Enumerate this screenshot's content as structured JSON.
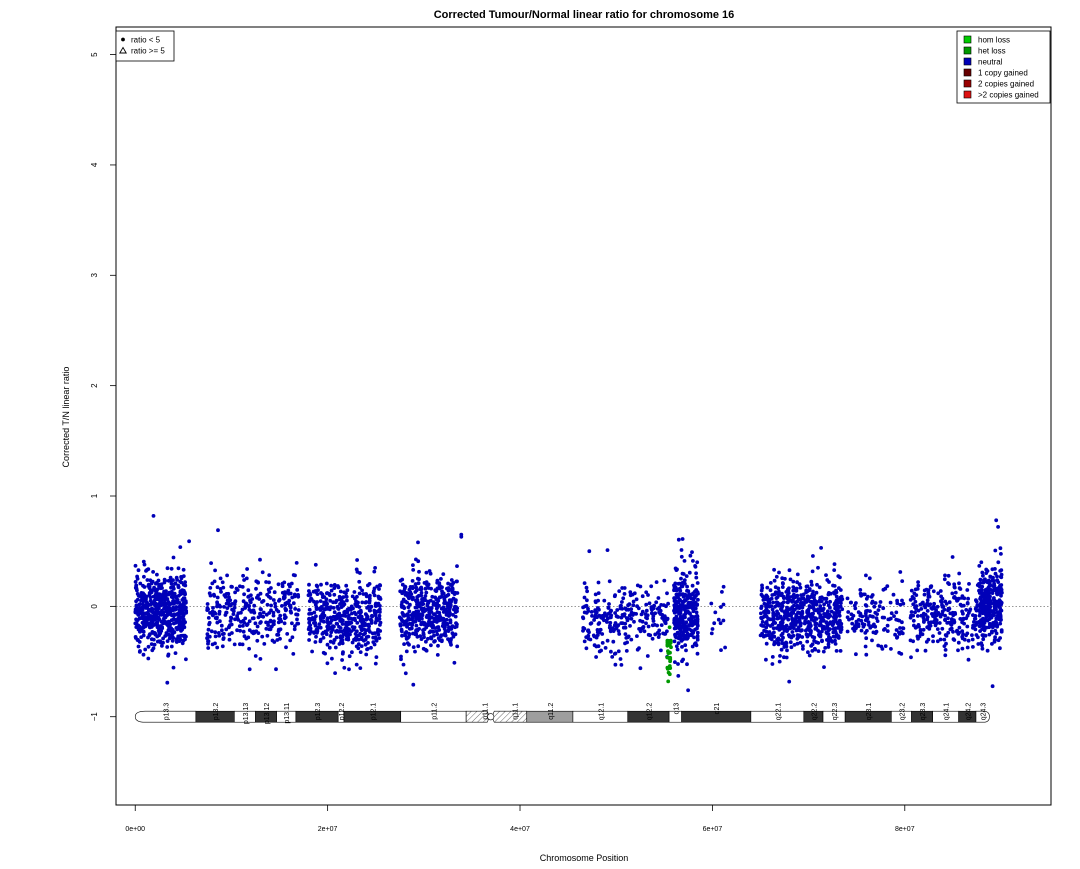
{
  "chart_data": {
    "type": "scatter",
    "title": "Corrected Tumour/Normal linear ratio for chromosome  16",
    "xlabel": "Chromosome Position",
    "ylabel": "Corrected T/N linear ratio",
    "xlim": [
      -2000000,
      95200000
    ],
    "ylim": [
      -1.8,
      5.25
    ],
    "x_ticks": [
      0,
      20000000,
      40000000,
      60000000,
      80000000
    ],
    "x_tick_labels": [
      "0e+00",
      "2e+07",
      "4e+07",
      "6e+07",
      "8e+07"
    ],
    "y_ticks": [
      -1,
      0,
      1,
      2,
      3,
      4,
      5
    ],
    "y_tick_labels": [
      "−1",
      "0",
      "1",
      "2",
      "3",
      "4",
      "5"
    ],
    "reference_line_y": 0,
    "grid": false,
    "shape_legend": {
      "placement": "top-left",
      "entries": [
        {
          "symbol": "dot",
          "label": "ratio < 5"
        },
        {
          "symbol": "triangle",
          "label": "ratio >= 5"
        }
      ]
    },
    "status_legend": {
      "placement": "top-right",
      "entries": [
        {
          "label": "hom loss",
          "color": "#00cc00"
        },
        {
          "label": "het loss",
          "color": "#009900"
        },
        {
          "label": "neutral",
          "color": "#0000b8"
        },
        {
          "label": "1 copy gained",
          "color": "#660000"
        },
        {
          "label": "2 copies gained",
          "color": "#990000"
        },
        {
          "label": ">2 copies gained",
          "color": "#dd1111"
        }
      ]
    },
    "segments": [
      {
        "status": "neutral",
        "color": "#0000b8",
        "x_start": 0,
        "x_end": 5300000,
        "mean": -0.05,
        "spread": 0.17,
        "n": 560,
        "seed": 11
      },
      {
        "status": "neutral",
        "color": "#0000b8",
        "x_start": 7400000,
        "x_end": 17000000,
        "mean": -0.07,
        "spread": 0.17,
        "n": 320,
        "seed": 23
      },
      {
        "status": "neutral",
        "color": "#0000b8",
        "x_start": 18000000,
        "x_end": 25500000,
        "mean": -0.1,
        "spread": 0.17,
        "n": 440,
        "seed": 37
      },
      {
        "status": "neutral",
        "color": "#0000b8",
        "x_start": 27500000,
        "x_end": 33500000,
        "mean": -0.05,
        "spread": 0.18,
        "n": 440,
        "seed": 41
      },
      {
        "status": "neutral",
        "color": "#0000b8",
        "x_start": 46500000,
        "x_end": 55600000,
        "mean": -0.13,
        "spread": 0.15,
        "n": 260,
        "seed": 53
      },
      {
        "status": "neutral",
        "color": "#0000b8",
        "x_start": 56000000,
        "x_end": 58500000,
        "mean": -0.05,
        "spread": 0.2,
        "n": 300,
        "seed": 67
      },
      {
        "status": "neutral",
        "color": "#0000b8",
        "x_start": 59800000,
        "x_end": 61800000,
        "mean": -0.1,
        "spread": 0.18,
        "n": 14,
        "seed": 71
      },
      {
        "status": "neutral",
        "color": "#0000b8",
        "x_start": 65000000,
        "x_end": 73500000,
        "mean": -0.08,
        "spread": 0.17,
        "n": 620,
        "seed": 83
      },
      {
        "status": "neutral",
        "color": "#0000b8",
        "x_start": 74000000,
        "x_end": 80000000,
        "mean": -0.13,
        "spread": 0.15,
        "n": 130,
        "seed": 97
      },
      {
        "status": "neutral",
        "color": "#0000b8",
        "x_start": 80500000,
        "x_end": 87700000,
        "mean": -0.07,
        "spread": 0.16,
        "n": 260,
        "seed": 101
      },
      {
        "status": "neutral",
        "color": "#0000b8",
        "x_start": 87700000,
        "x_end": 90100000,
        "mean": 0.0,
        "spread": 0.18,
        "n": 300,
        "seed": 113
      },
      {
        "status": "het loss",
        "color": "#009900",
        "x_start": 55300000,
        "x_end": 55700000,
        "mean": -0.42,
        "spread": 0.09,
        "n": 28,
        "seed": 131
      }
    ],
    "highlighted_points": [
      {
        "x": 1900000,
        "y": 0.82,
        "color": "#0000b8"
      },
      {
        "x": 8600000,
        "y": 0.69,
        "color": "#0000b8"
      },
      {
        "x": 5600000,
        "y": 0.59,
        "color": "#0000b8"
      },
      {
        "x": 29400000,
        "y": 0.58,
        "color": "#0000b8"
      },
      {
        "x": 33900000,
        "y": 0.65,
        "color": "#0000b8"
      },
      {
        "x": 33900000,
        "y": 0.63,
        "color": "#0000b8"
      },
      {
        "x": 56900000,
        "y": 0.61,
        "color": "#0000b8"
      },
      {
        "x": 89500000,
        "y": 0.78,
        "color": "#0000b8"
      },
      {
        "x": 89700000,
        "y": 0.72,
        "color": "#0000b8"
      },
      {
        "x": 71300000,
        "y": 0.53,
        "color": "#0000b8"
      },
      {
        "x": 49100000,
        "y": 0.51,
        "color": "#0000b8"
      },
      {
        "x": 47200000,
        "y": 0.5,
        "color": "#0000b8"
      },
      {
        "x": 55400000,
        "y": -0.68,
        "color": "#009900"
      },
      {
        "x": 55450000,
        "y": -0.6,
        "color": "#009900"
      },
      {
        "x": 11900000,
        "y": -0.57,
        "color": "#0000b8"
      },
      {
        "x": 71600000,
        "y": -0.55,
        "color": "#0000b8"
      }
    ],
    "ideogram": {
      "y": -1,
      "centromere": 36800000,
      "bands": [
        {
          "name": "p13.3",
          "start": 0,
          "end": 6300000,
          "stain": "gneg"
        },
        {
          "name": "p13.2",
          "start": 6300000,
          "end": 10300000,
          "stain": "gpos"
        },
        {
          "name": "p13.13",
          "start": 10300000,
          "end": 12500000,
          "stain": "gneg"
        },
        {
          "name": "p13.12",
          "start": 12500000,
          "end": 14700000,
          "stain": "gpos"
        },
        {
          "name": "p13.11",
          "start": 14700000,
          "end": 16700000,
          "stain": "gneg"
        },
        {
          "name": "p12.3",
          "start": 16700000,
          "end": 21100000,
          "stain": "gpos"
        },
        {
          "name": "p12.2",
          "start": 21100000,
          "end": 21700000,
          "stain": "gneg"
        },
        {
          "name": "p12.1",
          "start": 21700000,
          "end": 27600000,
          "stain": "gpos"
        },
        {
          "name": "p11.2",
          "start": 27600000,
          "end": 34400000,
          "stain": "gneg"
        },
        {
          "name": "p11.1",
          "start": 34400000,
          "end": 38200000,
          "stain": "acen"
        },
        {
          "name": "q11.1",
          "start": 38200000,
          "end": 40700000,
          "stain": "acen"
        },
        {
          "name": "q11.2",
          "start": 40700000,
          "end": 45500000,
          "stain": "gvar"
        },
        {
          "name": "q12.1",
          "start": 45500000,
          "end": 51200000,
          "stain": "gneg"
        },
        {
          "name": "q12.2",
          "start": 51200000,
          "end": 55500000,
          "stain": "gpos"
        },
        {
          "name": "q13",
          "start": 55500000,
          "end": 56800000,
          "stain": "gneg"
        },
        {
          "name": "q21",
          "start": 56800000,
          "end": 64000000,
          "stain": "gpos"
        },
        {
          "name": "q22.1",
          "start": 64000000,
          "end": 69500000,
          "stain": "gneg"
        },
        {
          "name": "q22.2",
          "start": 69500000,
          "end": 71500000,
          "stain": "gpos"
        },
        {
          "name": "q22.3",
          "start": 71500000,
          "end": 73800000,
          "stain": "gneg"
        },
        {
          "name": "q23.1",
          "start": 73800000,
          "end": 78600000,
          "stain": "gpos"
        },
        {
          "name": "q23.2",
          "start": 78600000,
          "end": 80700000,
          "stain": "gneg"
        },
        {
          "name": "q23.3",
          "start": 80700000,
          "end": 82900000,
          "stain": "gpos"
        },
        {
          "name": "q24.1",
          "start": 82900000,
          "end": 85600000,
          "stain": "gneg"
        },
        {
          "name": "q24.2",
          "start": 85600000,
          "end": 87400000,
          "stain": "gpos"
        },
        {
          "name": "q24.3",
          "start": 87400000,
          "end": 88800000,
          "stain": "gneg"
        }
      ]
    }
  }
}
